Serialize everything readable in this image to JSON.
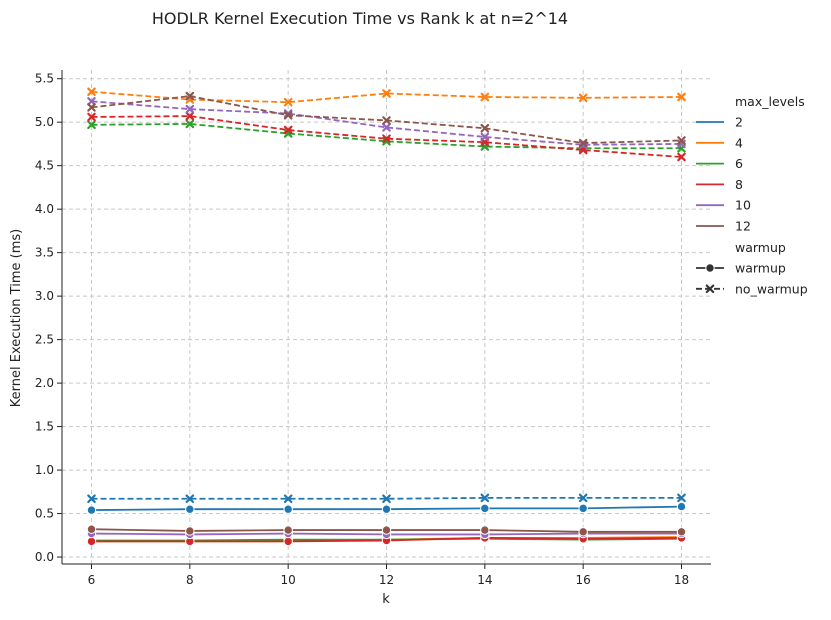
{
  "chart_data": {
    "type": "line",
    "title": "HODLR Kernel Execution Time vs Rank k at n=2^14",
    "xlabel": "k",
    "ylabel": "Kernel Execution Time (ms)",
    "xlim": [
      5.4,
      18.6
    ],
    "ylim": [
      -0.08,
      5.6
    ],
    "xticks": [
      6,
      8,
      10,
      12,
      14,
      16,
      18
    ],
    "yticks": [
      0.0,
      0.5,
      1.0,
      1.5,
      2.0,
      2.5,
      3.0,
      3.5,
      4.0,
      4.5,
      5.0,
      5.5
    ],
    "grid": true,
    "legend_position": "right",
    "x": [
      6,
      8,
      10,
      12,
      14,
      16,
      18
    ],
    "hue_legend_title": "max_levels",
    "style_legend_title": "warmup",
    "hue_levels": [
      {
        "name": "2",
        "color": "#1f77b4"
      },
      {
        "name": "4",
        "color": "#ff7f0e"
      },
      {
        "name": "6",
        "color": "#2ca02c"
      },
      {
        "name": "8",
        "color": "#d62728"
      },
      {
        "name": "10",
        "color": "#9467bd"
      },
      {
        "name": "12",
        "color": "#8c564b"
      }
    ],
    "style_levels": [
      {
        "name": "warmup",
        "marker": "circle",
        "dash": "solid"
      },
      {
        "name": "no_warmup",
        "marker": "x",
        "dash": "dashed"
      }
    ],
    "series": [
      {
        "max_levels": "2",
        "warmup": "warmup",
        "values": [
          0.54,
          0.55,
          0.55,
          0.55,
          0.56,
          0.56,
          0.58
        ]
      },
      {
        "max_levels": "4",
        "warmup": "warmup",
        "values": [
          0.18,
          0.18,
          0.18,
          0.2,
          0.22,
          0.22,
          0.23
        ]
      },
      {
        "max_levels": "6",
        "warmup": "warmup",
        "values": [
          0.19,
          0.19,
          0.2,
          0.2,
          0.21,
          0.2,
          0.21
        ]
      },
      {
        "max_levels": "8",
        "warmup": "warmup",
        "values": [
          0.18,
          0.18,
          0.18,
          0.19,
          0.22,
          0.21,
          0.22
        ]
      },
      {
        "max_levels": "10",
        "warmup": "warmup",
        "values": [
          0.27,
          0.26,
          0.27,
          0.26,
          0.26,
          0.27,
          0.27
        ]
      },
      {
        "max_levels": "12",
        "warmup": "warmup",
        "values": [
          0.32,
          0.3,
          0.31,
          0.31,
          0.31,
          0.29,
          0.29
        ]
      },
      {
        "max_levels": "2",
        "warmup": "no_warmup",
        "values": [
          0.67,
          0.67,
          0.67,
          0.67,
          0.68,
          0.68,
          0.68
        ]
      },
      {
        "max_levels": "4",
        "warmup": "no_warmup",
        "values": [
          5.35,
          5.26,
          5.23,
          5.33,
          5.29,
          5.28,
          5.29
        ]
      },
      {
        "max_levels": "6",
        "warmup": "no_warmup",
        "values": [
          4.97,
          4.98,
          4.87,
          4.78,
          4.72,
          4.7,
          4.7
        ]
      },
      {
        "max_levels": "8",
        "warmup": "no_warmup",
        "values": [
          5.06,
          5.07,
          4.91,
          4.81,
          4.77,
          4.68,
          4.6
        ]
      },
      {
        "max_levels": "10",
        "warmup": "no_warmup",
        "values": [
          5.24,
          5.15,
          5.1,
          4.94,
          4.83,
          4.74,
          4.75
        ]
      },
      {
        "max_levels": "12",
        "warmup": "no_warmup",
        "values": [
          5.17,
          5.3,
          5.08,
          5.02,
          4.93,
          4.76,
          4.79
        ]
      }
    ]
  }
}
